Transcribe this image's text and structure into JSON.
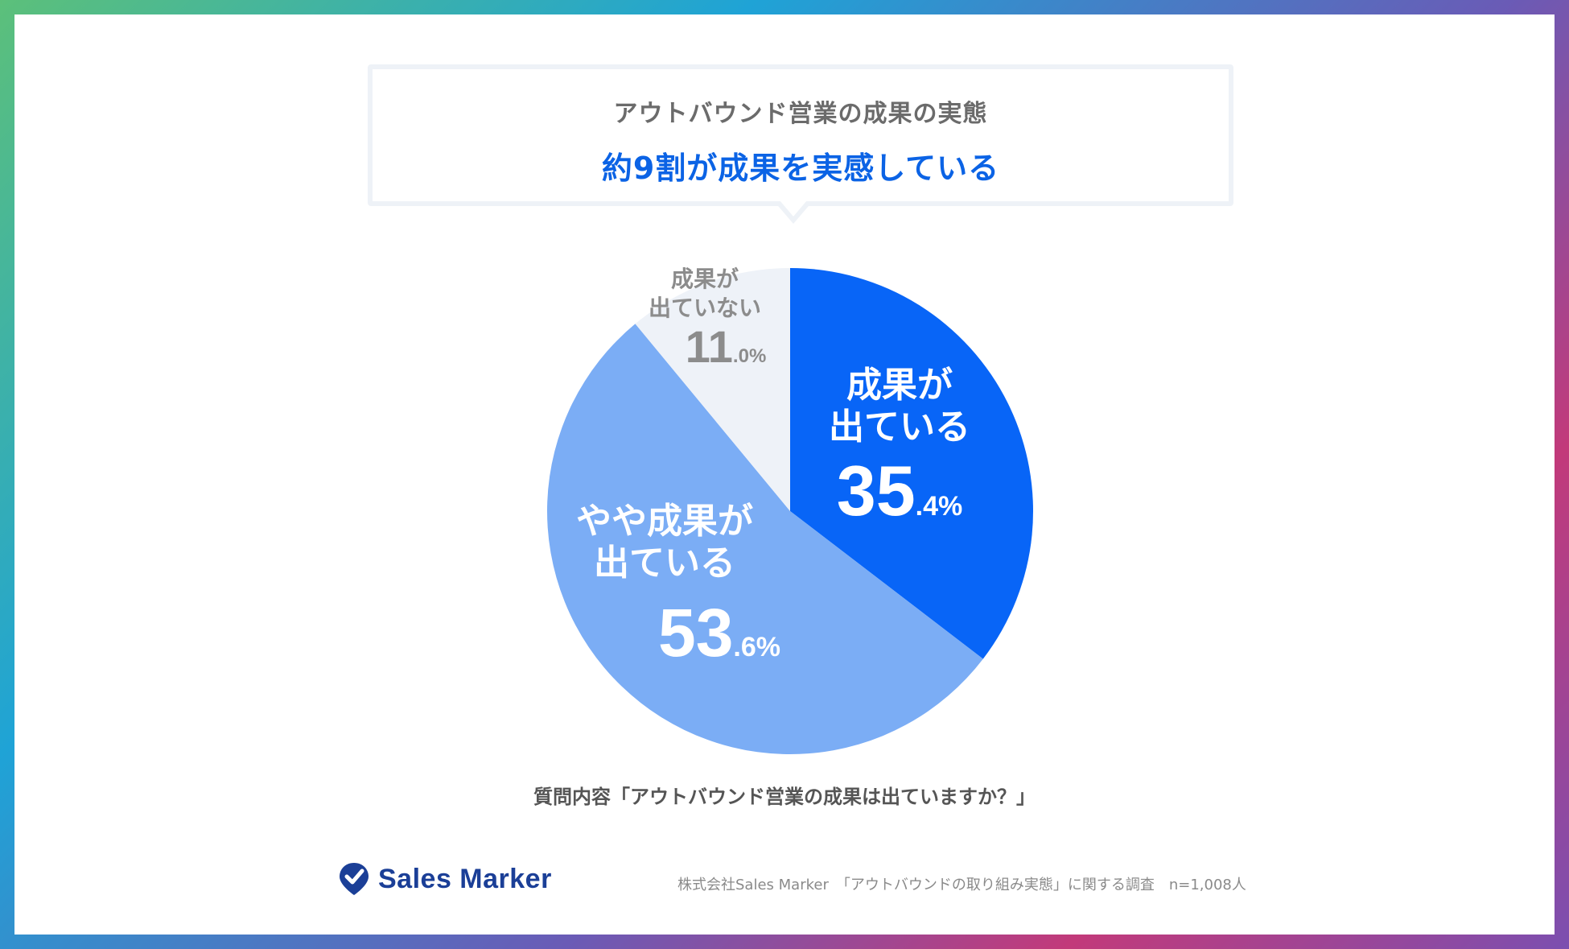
{
  "callout": {
    "title": "アウトバウンド営業の成果の実態",
    "headline": "約9割が成果を実感している"
  },
  "chart_data": {
    "type": "pie",
    "slices": [
      {
        "label_lines": [
          "成果が",
          "出ている"
        ],
        "int_part": "35",
        "dec_part": ".4%",
        "value": 35.4,
        "color": "#0865f7",
        "text_color": "#ffffff"
      },
      {
        "label_lines": [
          "やや成果が",
          "出ている"
        ],
        "int_part": "53",
        "dec_part": ".6%",
        "value": 53.6,
        "color": "#7badf5",
        "text_color": "#ffffff"
      },
      {
        "label_lines": [
          "成果が",
          "出ていない"
        ],
        "int_part": "11",
        "dec_part": ".0%",
        "value": 11.0,
        "color": "#eef2f8",
        "text_color": "#8c8c8c"
      }
    ],
    "start": "12 o'clock",
    "direction": "clockwise",
    "legend": "none"
  },
  "question": "質問内容「アウトバウンド営業の成果は出ていますか？」",
  "logo": {
    "text": "Sales Marker",
    "icon": "location-pin-check-icon",
    "color": "#1b3f97"
  },
  "source": "株式会社Sales Marker　「アウトバウンドの取り組み実態」に関する調査　n=1,008人"
}
